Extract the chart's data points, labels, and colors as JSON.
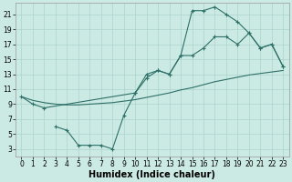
{
  "xlabel": "Humidex (Indice chaleur)",
  "bg_color": "#cceae4",
  "line_color": "#2d7068",
  "grid_color": "#aad4cc",
  "xlim": [
    -0.5,
    23.5
  ],
  "ylim": [
    2.0,
    22.5
  ],
  "xticks": [
    0,
    1,
    2,
    3,
    4,
    5,
    6,
    7,
    8,
    9,
    10,
    11,
    12,
    13,
    14,
    15,
    16,
    17,
    18,
    19,
    20,
    21,
    22,
    23
  ],
  "yticks": [
    3,
    5,
    7,
    9,
    11,
    13,
    15,
    17,
    19,
    21
  ],
  "line1_x": [
    0,
    1,
    2,
    3,
    4,
    5,
    6,
    7,
    8,
    9,
    10,
    11,
    12,
    13,
    14,
    15,
    16,
    17,
    18,
    19,
    20,
    21,
    22,
    23
  ],
  "line1_y": [
    10,
    9.5,
    9.2,
    9.0,
    8.9,
    8.9,
    9.0,
    9.1,
    9.2,
    9.4,
    9.6,
    9.9,
    10.2,
    10.5,
    10.9,
    11.2,
    11.6,
    12.0,
    12.3,
    12.6,
    12.9,
    13.1,
    13.3,
    13.5
  ],
  "line2_x": [
    0,
    1,
    2,
    10,
    11,
    12,
    13,
    14,
    15,
    16,
    17,
    18,
    19,
    20,
    21,
    22,
    23
  ],
  "line2_y": [
    10,
    9.0,
    8.5,
    10.5,
    12.5,
    13.5,
    13.0,
    15.5,
    15.5,
    16.5,
    18.0,
    18.0,
    17.0,
    18.5,
    16.5,
    17.0,
    14.0
  ],
  "line3_x": [
    3,
    4,
    5,
    6,
    7,
    8,
    9,
    10,
    11,
    12,
    13,
    14,
    15,
    16,
    17,
    18,
    19,
    20,
    21,
    22,
    23
  ],
  "line3_y": [
    6.0,
    5.5,
    3.5,
    3.5,
    3.5,
    3.0,
    7.5,
    10.5,
    13.0,
    13.5,
    13.0,
    15.5,
    21.5,
    21.5,
    22.0,
    21.0,
    20.0,
    18.5,
    16.5,
    17.0,
    14.0
  ],
  "tick_fontsize": 5.5,
  "xlabel_fontsize": 7
}
